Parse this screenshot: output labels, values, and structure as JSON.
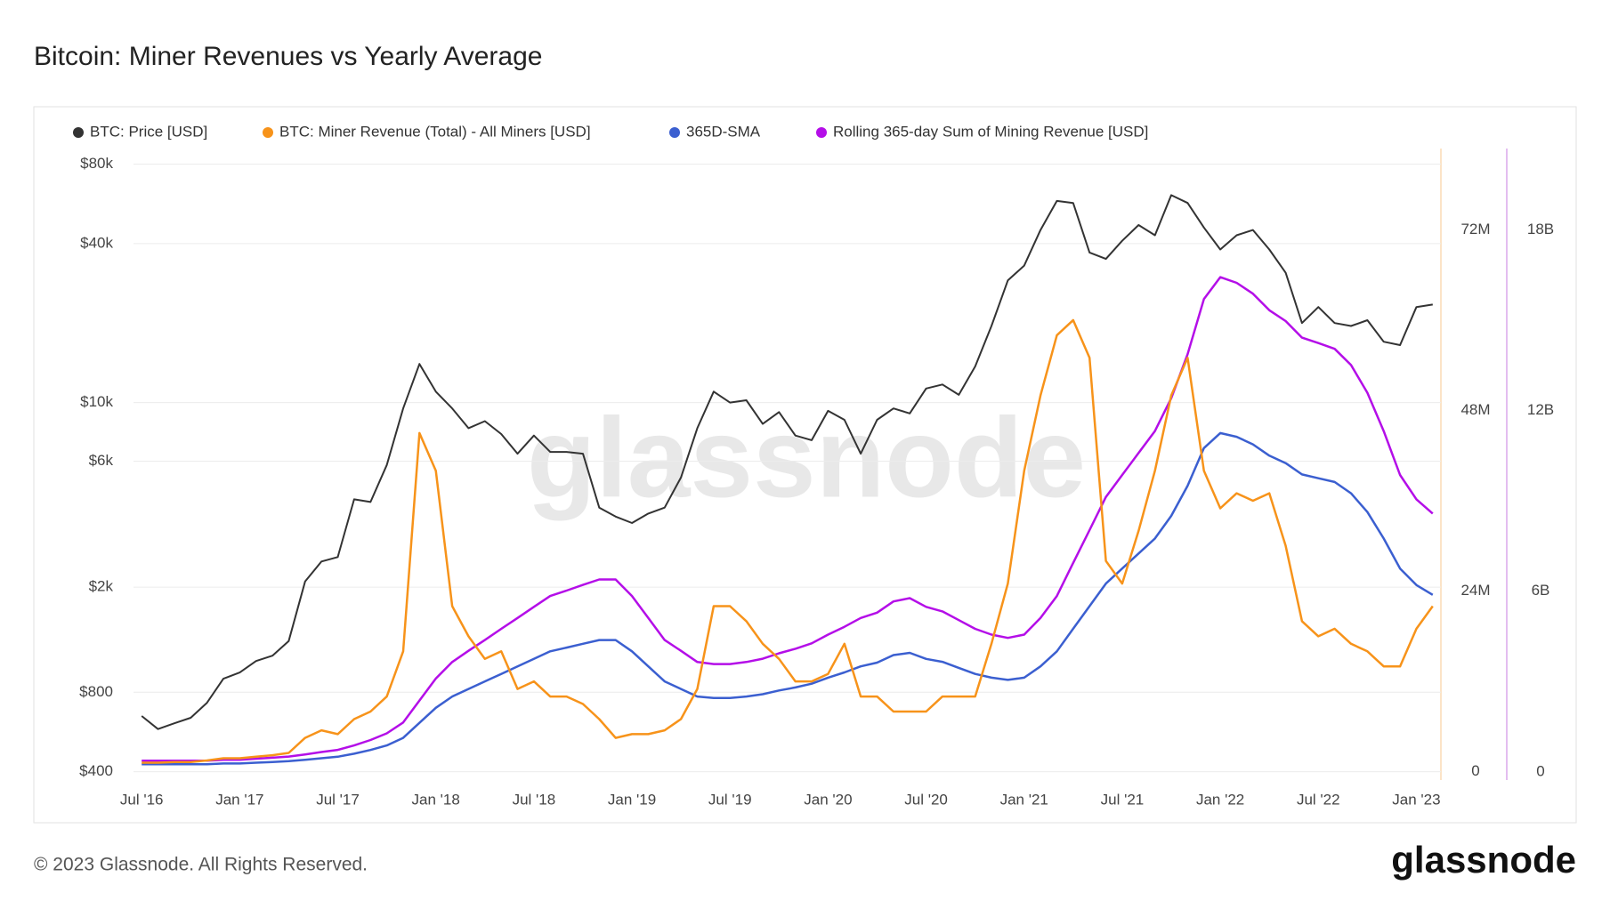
{
  "chart_data": {
    "type": "line",
    "title": "Bitcoin: Miner Revenues vs Yearly Average",
    "watermark": "glassnode",
    "footer": "© 2023 Glassnode. All Rights Reserved.",
    "logo": "glassnode",
    "log_scale_y": true,
    "grid": true,
    "x": [
      "2016-07",
      "2016-08",
      "2016-09",
      "2016-10",
      "2016-11",
      "2016-12",
      "2017-01",
      "2017-02",
      "2017-03",
      "2017-04",
      "2017-05",
      "2017-06",
      "2017-07",
      "2017-08",
      "2017-09",
      "2017-10",
      "2017-11",
      "2017-12",
      "2018-01",
      "2018-02",
      "2018-03",
      "2018-04",
      "2018-05",
      "2018-06",
      "2018-07",
      "2018-08",
      "2018-09",
      "2018-10",
      "2018-11",
      "2018-12",
      "2019-01",
      "2019-02",
      "2019-03",
      "2019-04",
      "2019-05",
      "2019-06",
      "2019-07",
      "2019-08",
      "2019-09",
      "2019-10",
      "2019-11",
      "2019-12",
      "2020-01",
      "2020-02",
      "2020-03",
      "2020-04",
      "2020-05",
      "2020-06",
      "2020-07",
      "2020-08",
      "2020-09",
      "2020-10",
      "2020-11",
      "2020-12",
      "2021-01",
      "2021-02",
      "2021-03",
      "2021-04",
      "2021-05",
      "2021-06",
      "2021-07",
      "2021-08",
      "2021-09",
      "2021-10",
      "2021-11",
      "2021-12",
      "2022-01",
      "2022-02",
      "2022-03",
      "2022-04",
      "2022-05",
      "2022-06",
      "2022-07",
      "2022-08",
      "2022-09",
      "2022-10",
      "2022-11",
      "2022-12",
      "2023-01",
      "2023-02"
    ],
    "xticks": [
      {
        "value": "2016-07",
        "label": "Jul '16"
      },
      {
        "value": "2017-01",
        "label": "Jan '17"
      },
      {
        "value": "2017-07",
        "label": "Jul '17"
      },
      {
        "value": "2018-01",
        "label": "Jan '18"
      },
      {
        "value": "2018-07",
        "label": "Jul '18"
      },
      {
        "value": "2019-01",
        "label": "Jan '19"
      },
      {
        "value": "2019-07",
        "label": "Jul '19"
      },
      {
        "value": "2020-01",
        "label": "Jan '20"
      },
      {
        "value": "2020-07",
        "label": "Jul '20"
      },
      {
        "value": "2021-01",
        "label": "Jan '21"
      },
      {
        "value": "2021-07",
        "label": "Jul '21"
      },
      {
        "value": "2022-01",
        "label": "Jan '22"
      },
      {
        "value": "2022-07",
        "label": "Jul '22"
      },
      {
        "value": "2023-01",
        "label": "Jan '23"
      }
    ],
    "ylim": [
      372,
      91600
    ],
    "yticks": [
      {
        "value": 400,
        "label": "$400"
      },
      {
        "value": 800,
        "label": "$800"
      },
      {
        "value": 2000,
        "label": "$2k"
      },
      {
        "value": 6000,
        "label": "$6k"
      },
      {
        "value": 10000,
        "label": "$10k"
      },
      {
        "value": 40000,
        "label": "$40k"
      },
      {
        "value": 80000,
        "label": "$80k"
      }
    ],
    "y2lim": [
      -1100000.0,
      82800000.0
    ],
    "y2ticks": [
      0,
      {
        "value": 24000000.0,
        "label": "24M"
      },
      {
        "value": 48000000.0,
        "label": "48M"
      },
      {
        "value": 72000000.0,
        "label": "72M"
      }
    ],
    "y3lim": [
      -270000000.0,
      20700000000.0
    ],
    "y3ticks": [
      0,
      {
        "value": 6000000000.0,
        "label": "6B"
      },
      {
        "value": 12000000000.0,
        "label": "12B"
      },
      {
        "value": 18000000000.0,
        "label": "18B"
      }
    ],
    "series": [
      {
        "name": "BTC: Price [USD]",
        "color": "#333333",
        "axis": "y",
        "values": [
          650,
          580,
          610,
          640,
          730,
          900,
          950,
          1050,
          1100,
          1250,
          2100,
          2500,
          2600,
          4300,
          4200,
          5800,
          9500,
          14000,
          11000,
          9500,
          8000,
          8500,
          7600,
          6400,
          7500,
          6500,
          6500,
          6400,
          4000,
          3700,
          3500,
          3800,
          4000,
          5200,
          8000,
          11000,
          10000,
          10200,
          8300,
          9200,
          7500,
          7200,
          9300,
          8600,
          6400,
          8600,
          9500,
          9100,
          11300,
          11700,
          10700,
          13700,
          19500,
          29000,
          33000,
          45000,
          58000,
          57000,
          37000,
          35000,
          41000,
          47000,
          43000,
          61000,
          57000,
          46000,
          38000,
          43000,
          45000,
          38000,
          31000,
          20000,
          23000,
          20000,
          19500,
          20500,
          17000,
          16500,
          23000,
          23500
        ]
      },
      {
        "name": "BTC: Miner Revenue (Total) - All Miners [USD]",
        "color": "#f7931a",
        "axis": "y2",
        "values": [
          1200000.0,
          1200000.0,
          1300000.0,
          1300000.0,
          1500000.0,
          1800000.0,
          1800000.0,
          2000000.0,
          2200000.0,
          2500000.0,
          4500000.0,
          5500000.0,
          5000000.0,
          7000000.0,
          8000000.0,
          10000000.0,
          16000000.0,
          45000000.0,
          40000000.0,
          22000000.0,
          18000000.0,
          15000000.0,
          16000000.0,
          11000000.0,
          12000000.0,
          10000000.0,
          10000000.0,
          9000000.0,
          7000000.0,
          4500000.0,
          5000000.0,
          5000000.0,
          5500000.0,
          7000000.0,
          11000000.0,
          22000000.0,
          22000000.0,
          20000000.0,
          17000000.0,
          15000000.0,
          12000000.0,
          12000000.0,
          13000000.0,
          17000000.0,
          10000000.0,
          10000000.0,
          8000000.0,
          8000000.0,
          8000000.0,
          10000000.0,
          10000000.0,
          10000000.0,
          17000000.0,
          25000000.0,
          40000000.0,
          50000000.0,
          58000000.0,
          60000000.0,
          55000000.0,
          28000000.0,
          25000000.0,
          32000000.0,
          40000000.0,
          50000000.0,
          55000000.0,
          40000000.0,
          35000000.0,
          37000000.0,
          36000000.0,
          37000000.0,
          30000000.0,
          20000000.0,
          18000000.0,
          19000000.0,
          17000000.0,
          16000000.0,
          14000000.0,
          14000000.0,
          19000000.0,
          22000000.0
        ]
      },
      {
        "name": "365D-SMA",
        "color": "#3b5fd0",
        "axis": "y2",
        "values": [
          1000000.0,
          1000000.0,
          1000000.0,
          1000000.0,
          1000000.0,
          1100000.0,
          1100000.0,
          1200000.0,
          1300000.0,
          1400000.0,
          1600000.0,
          1800000.0,
          2000000.0,
          2400000.0,
          2900000.0,
          3500000.0,
          4500000.0,
          6500000.0,
          8500000.0,
          10000000.0,
          11000000.0,
          12000000.0,
          13000000.0,
          14000000.0,
          15000000.0,
          16000000.0,
          16500000.0,
          17000000.0,
          17500000.0,
          17500000.0,
          16000000.0,
          14000000.0,
          12000000.0,
          11000000.0,
          10000000.0,
          9800000.0,
          9800000.0,
          10000000.0,
          10300000.0,
          10800000.0,
          11200000.0,
          11700000.0,
          12500000.0,
          13200000.0,
          14000000.0,
          14500000.0,
          15500000.0,
          15800000.0,
          15000000.0,
          14600000.0,
          13800000.0,
          13000000.0,
          12500000.0,
          12200000.0,
          12500000.0,
          14000000.0,
          16000000.0,
          19000000.0,
          22000000.0,
          25000000.0,
          27000000.0,
          29000000.0,
          31000000.0,
          34000000.0,
          38000000.0,
          43000000.0,
          45000000.0,
          44500000.0,
          43500000.0,
          42000000.0,
          41000000.0,
          39500000.0,
          39000000.0,
          38500000.0,
          37000000.0,
          34500000.0,
          31000000.0,
          27000000.0,
          24800000.0,
          23500000.0
        ]
      },
      {
        "name": "Rolling 365-day Sum of Mining Revenue [USD]",
        "color": "#b40ee8",
        "axis": "y3",
        "values": [
          370000000.0,
          370000000.0,
          370000000.0,
          370000000.0,
          370000000.0,
          400000000.0,
          400000000.0,
          440000000.0,
          470000000.0,
          510000000.0,
          580000000.0,
          660000000.0,
          730000000.0,
          880000000.0,
          1060000000.0,
          1280000000.0,
          1640000000.0,
          2370000000.0,
          3100000000.0,
          3650000000.0,
          4020000000.0,
          4380000000.0,
          4750000000.0,
          5110000000.0,
          5480000000.0,
          5840000000.0,
          6020000000.0,
          6210000000.0,
          6390000000.0,
          6390000000.0,
          5840000000.0,
          5110000000.0,
          4380000000.0,
          4020000000.0,
          3650000000.0,
          3580000000.0,
          3580000000.0,
          3650000000.0,
          3760000000.0,
          3940000000.0,
          4090000000.0,
          4270000000.0,
          4560000000.0,
          4820000000.0,
          5110000000.0,
          5290000000.0,
          5660000000.0,
          5770000000.0,
          5480000000.0,
          5330000000.0,
          5040000000.0,
          4750000000.0,
          4560000000.0,
          4450000000.0,
          4560000000.0,
          5110000000.0,
          5840000000.0,
          6940000000.0,
          8030000000.0,
          9130000000.0,
          9860000000.0,
          10590000000.0,
          11320000000.0,
          12410000000.0,
          13870000000.0,
          15700000000.0,
          16430000000.0,
          16240000000.0,
          15880000000.0,
          15330000000.0,
          14970000000.0,
          14420000000.0,
          14240000000.0,
          14050000000.0,
          13510000000.0,
          12590000000.0,
          11320000000.0,
          9860000000.0,
          9050000000.0,
          8580000000.0
        ]
      }
    ]
  }
}
